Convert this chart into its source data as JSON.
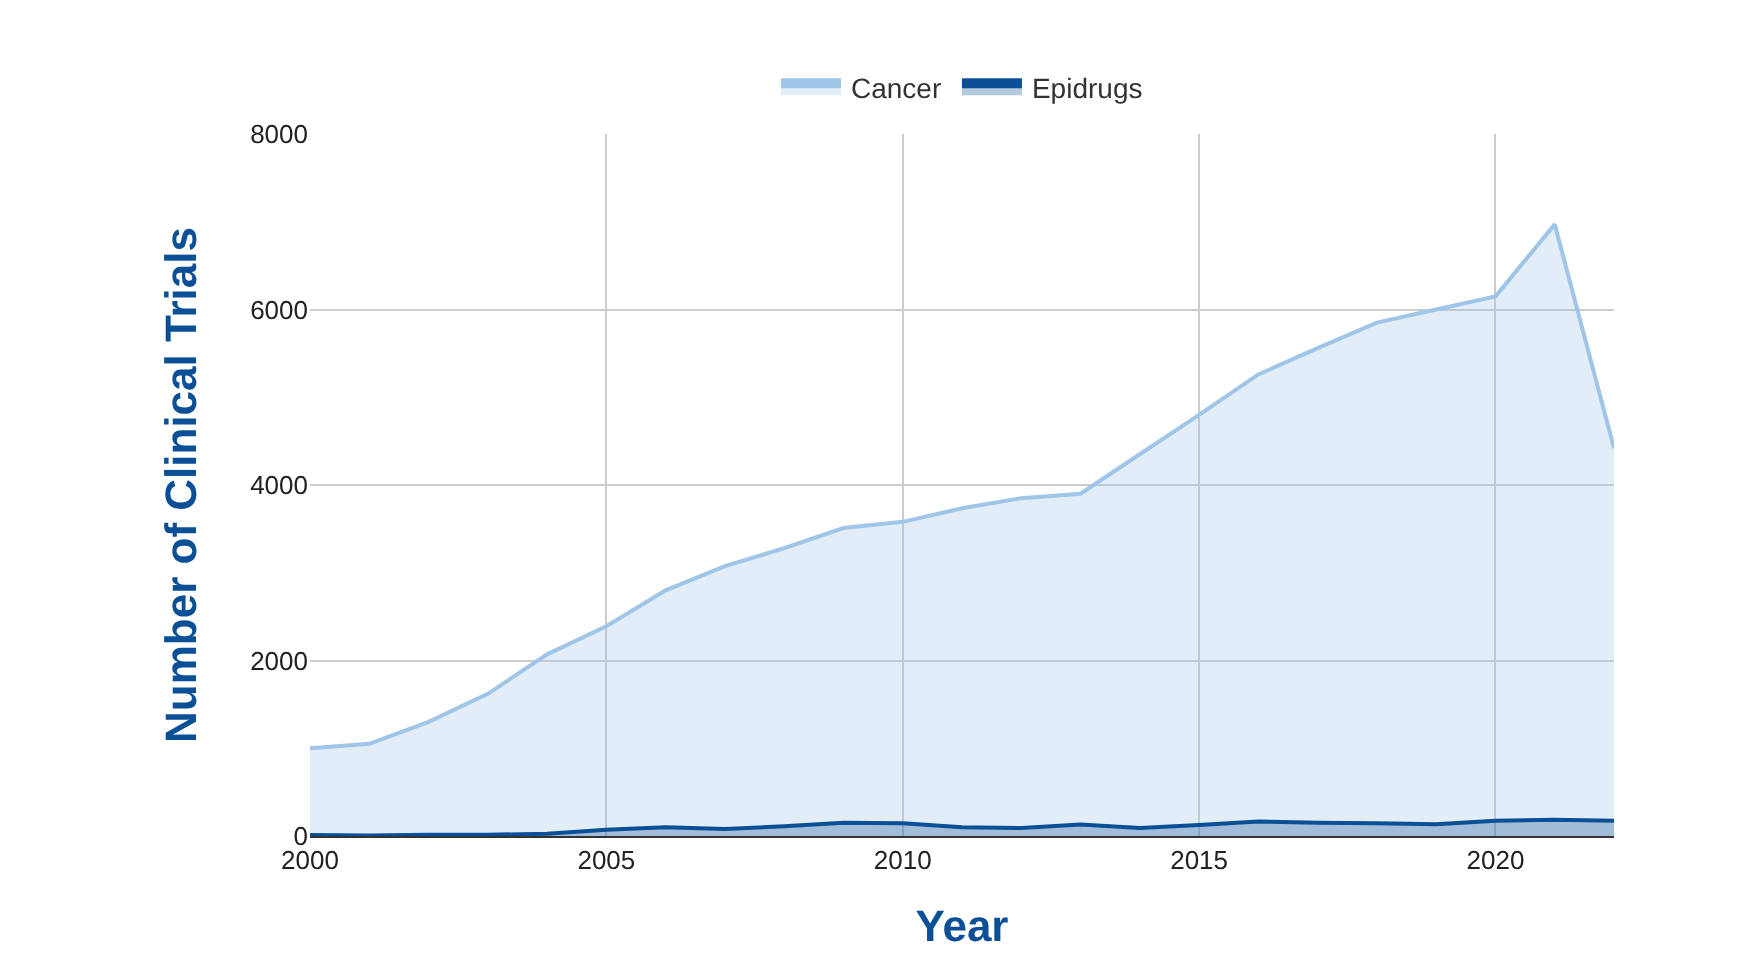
{
  "chart_data": {
    "type": "area",
    "xlabel": "Year",
    "ylabel": "Number of Clinical Trials",
    "x": [
      2000,
      2001,
      2002,
      2003,
      2004,
      2005,
      2006,
      2007,
      2008,
      2009,
      2010,
      2011,
      2012,
      2013,
      2014,
      2015,
      2016,
      2017,
      2018,
      2019,
      2020,
      2021,
      2022
    ],
    "series": [
      {
        "name": "Cancer",
        "color": "#9fc5e8",
        "values": [
          1000,
          1050,
          1300,
          1620,
          2070,
          2390,
          2800,
          3075,
          3280,
          3510,
          3580,
          3735,
          3850,
          3900,
          4350,
          4800,
          5260,
          5560,
          5850,
          6000,
          6150,
          6970,
          4420
        ]
      },
      {
        "name": "Epidrugs",
        "color": "#0b4f96",
        "values": [
          10,
          5,
          15,
          15,
          25,
          70,
          100,
          80,
          110,
          150,
          145,
          100,
          90,
          130,
          90,
          125,
          165,
          150,
          145,
          135,
          175,
          185,
          175
        ]
      }
    ],
    "xlim": [
      2000,
      2022
    ],
    "xticks": [
      2000,
      2005,
      2010,
      2015,
      2020
    ],
    "ylim": [
      0,
      8000
    ],
    "yticks": [
      0,
      2000,
      4000,
      6000,
      8000
    ],
    "grid": true,
    "legend": "top"
  }
}
